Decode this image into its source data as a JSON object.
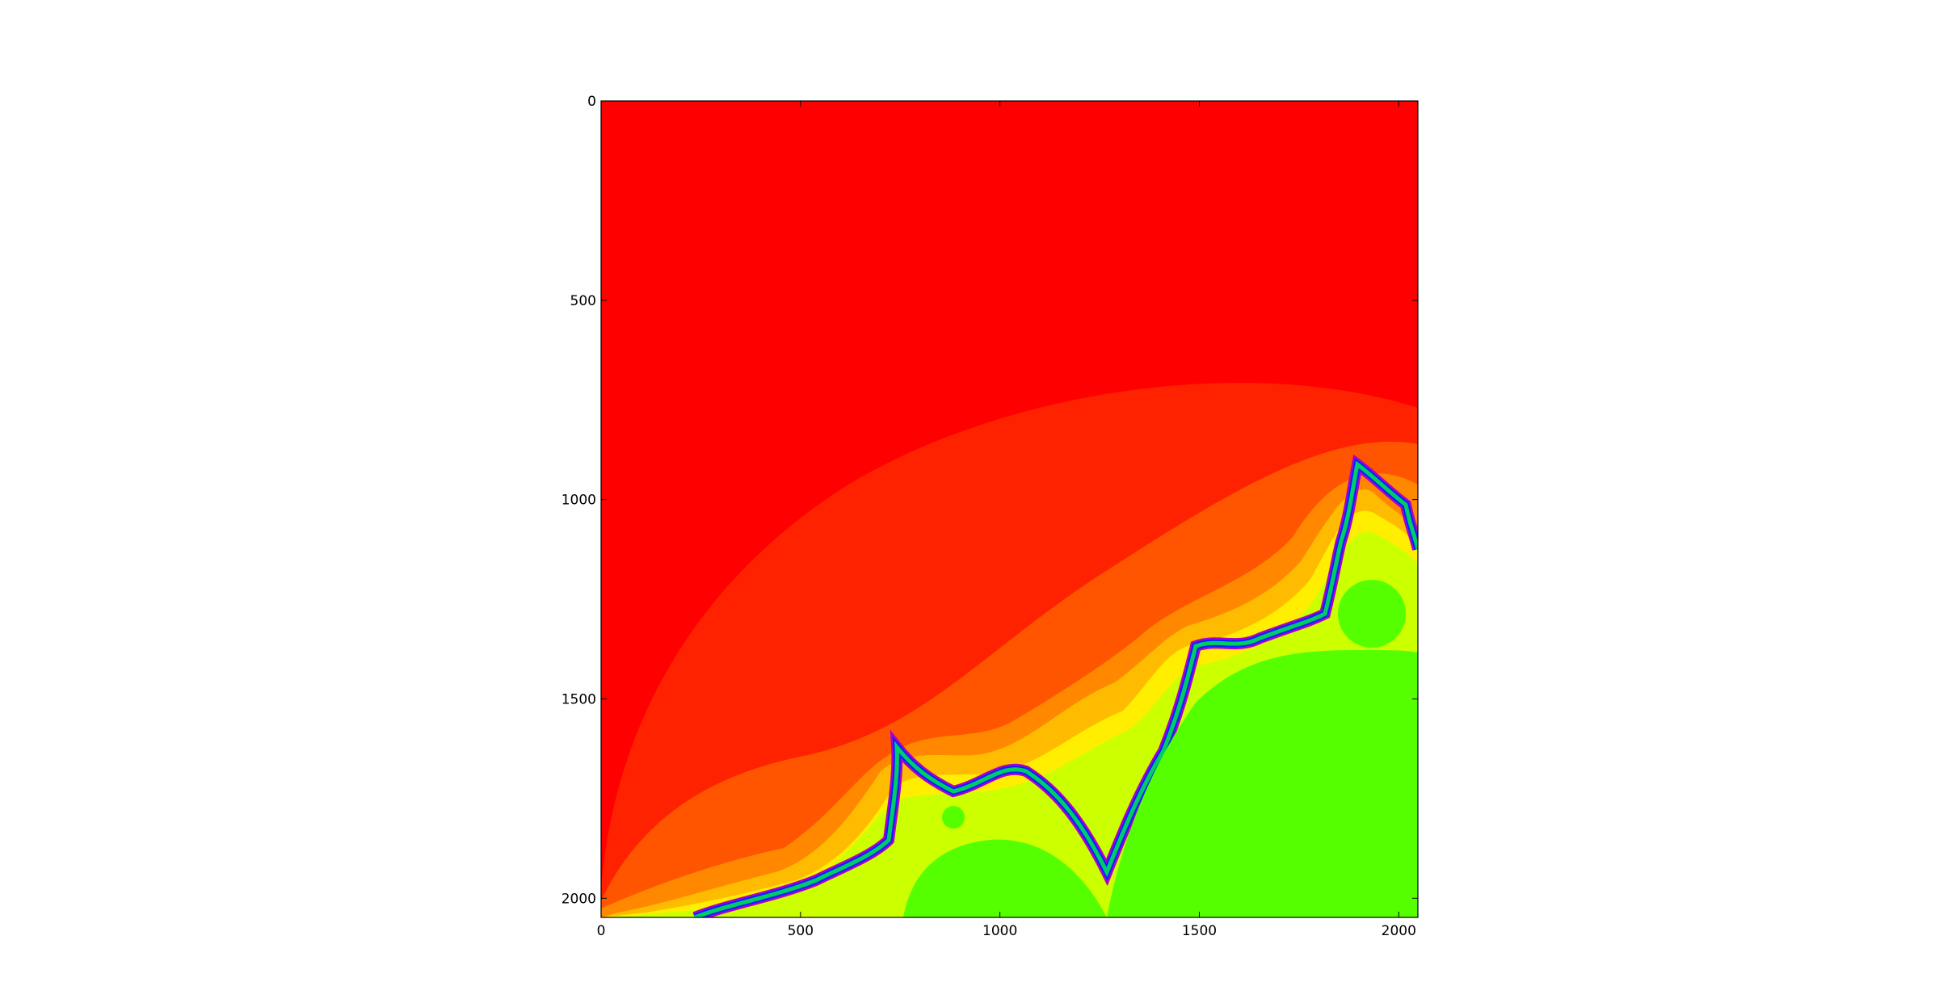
{
  "chart_data": {
    "type": "heatmap",
    "title": "",
    "xlabel": "",
    "ylabel": "",
    "xlim": [
      0,
      2048
    ],
    "ylim": [
      2048,
      0
    ],
    "x_ticks": [
      {
        "value": 0,
        "label": "0"
      },
      {
        "value": 500,
        "label": "500"
      },
      {
        "value": 1000,
        "label": "1000"
      },
      {
        "value": 1500,
        "label": "1500"
      },
      {
        "value": 2000,
        "label": "2000"
      }
    ],
    "y_ticks": [
      {
        "value": 0,
        "label": "0"
      },
      {
        "value": 500,
        "label": "500"
      },
      {
        "value": 1000,
        "label": "1000"
      },
      {
        "value": 1500,
        "label": "1500"
      },
      {
        "value": 2000,
        "label": "2000"
      }
    ],
    "grid": false,
    "colors": {
      "level_0": "#ff0000",
      "level_1": "#ff2200",
      "level_2": "#ff5500",
      "level_3": "#ff8800",
      "level_4": "#ffbb00",
      "level_5": "#ffee00",
      "level_6": "#ccff00",
      "interior": "#55ff00",
      "fringe_green": "#00cc66",
      "fringe_blue": "#0022ff",
      "fringe_purple": "#aa00cc"
    }
  }
}
